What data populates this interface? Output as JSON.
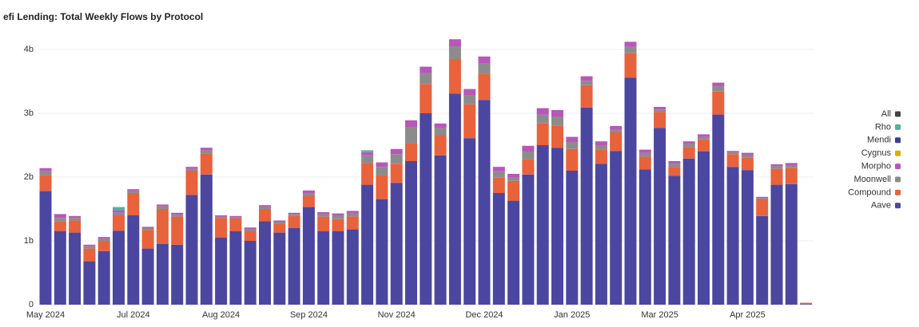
{
  "chart_data": {
    "type": "stacked_bar",
    "title": "efi Lending: Total Weekly Flows by Protocol",
    "categories": [
      "May 2024",
      null,
      null,
      null,
      null,
      null,
      "Jul 2024",
      null,
      null,
      null,
      null,
      null,
      "Aug 2024",
      null,
      null,
      null,
      null,
      null,
      "Sep 2024",
      null,
      null,
      null,
      null,
      null,
      "Nov 2024",
      null,
      null,
      null,
      null,
      null,
      "Dec 2024",
      null,
      null,
      null,
      null,
      null,
      "Jan 2025",
      null,
      null,
      null,
      null,
      null,
      "Mar 2025",
      null,
      null,
      null,
      null,
      null,
      "Apr 2025",
      null,
      null,
      null,
      null
    ],
    "ylim": [
      0,
      4.3
    ],
    "yticks": [
      0,
      {
        "value": 1,
        "label": "1b"
      },
      {
        "value": 2,
        "label": "2b"
      },
      {
        "value": 3,
        "label": "3b"
      },
      {
        "value": 4,
        "label": "4b"
      }
    ],
    "grid": true,
    "legend": "right",
    "legend_all": {
      "name": "All",
      "color": "#444444"
    },
    "series": [
      {
        "name": "Aave",
        "color": "#4b47a0",
        "values": [
          1.78,
          1.15,
          1.13,
          0.68,
          0.84,
          1.16,
          1.4,
          0.88,
          0.95,
          0.94,
          1.72,
          2.04,
          1.05,
          1.15,
          1.0,
          1.31,
          1.13,
          1.2,
          1.53,
          1.15,
          1.15,
          1.18,
          1.88,
          1.65,
          1.91,
          2.25,
          3.0,
          2.34,
          3.31,
          2.61,
          3.21,
          1.75,
          1.63,
          2.04,
          2.5,
          2.46,
          2.1,
          3.09,
          2.21,
          2.41,
          3.56,
          2.12,
          2.77,
          2.02,
          2.29,
          2.4,
          2.98,
          2.16,
          2.11,
          1.39,
          1.88,
          1.89,
          0.01
        ]
      },
      {
        "name": "Compound",
        "color": "#e8623c",
        "values": [
          0.25,
          0.16,
          0.19,
          0.2,
          0.16,
          0.24,
          0.35,
          0.29,
          0.55,
          0.44,
          0.38,
          0.33,
          0.31,
          0.2,
          0.15,
          0.19,
          0.14,
          0.19,
          0.17,
          0.23,
          0.19,
          0.2,
          0.34,
          0.38,
          0.3,
          0.28,
          0.46,
          0.31,
          0.54,
          0.53,
          0.41,
          0.24,
          0.31,
          0.24,
          0.34,
          0.35,
          0.34,
          0.35,
          0.22,
          0.29,
          0.38,
          0.2,
          0.25,
          0.14,
          0.18,
          0.19,
          0.36,
          0.2,
          0.2,
          0.26,
          0.25,
          0.25,
          0.02
        ]
      },
      {
        "name": "Moonwell",
        "color": "#8c8c8c",
        "values": [
          0.06,
          0.05,
          0.04,
          0.04,
          0.03,
          0.04,
          0.03,
          0.03,
          0.04,
          0.03,
          0.03,
          0.05,
          0.02,
          0.02,
          0.03,
          0.03,
          0.03,
          0.03,
          0.05,
          0.04,
          0.05,
          0.05,
          0.12,
          0.13,
          0.15,
          0.25,
          0.17,
          0.12,
          0.2,
          0.14,
          0.16,
          0.1,
          0.06,
          0.12,
          0.14,
          0.14,
          0.11,
          0.07,
          0.07,
          0.05,
          0.1,
          0.06,
          0.04,
          0.05,
          0.05,
          0.04,
          0.08,
          0.03,
          0.04,
          0.02,
          0.04,
          0.04,
          0
        ]
      },
      {
        "name": "Morpho",
        "color": "#b857b9",
        "values": [
          0.05,
          0.06,
          0.03,
          0.02,
          0.03,
          0.04,
          0.03,
          0.02,
          0.03,
          0.03,
          0.03,
          0.04,
          0.02,
          0.02,
          0.03,
          0.03,
          0.02,
          0.02,
          0.04,
          0.03,
          0.04,
          0.04,
          0.05,
          0.07,
          0.08,
          0.11,
          0.1,
          0.07,
          0.11,
          0.1,
          0.11,
          0.07,
          0.05,
          0.09,
          0.1,
          0.1,
          0.08,
          0.07,
          0.06,
          0.05,
          0.08,
          0.05,
          0.04,
          0.04,
          0.04,
          0.04,
          0.06,
          0.02,
          0.03,
          0.02,
          0.03,
          0.04,
          0
        ]
      },
      {
        "name": "Cygnus",
        "color": "#d4b106",
        "values": [
          0,
          0,
          0,
          0,
          0,
          0,
          0,
          0,
          0,
          0,
          0,
          0,
          0,
          0,
          0,
          0,
          0,
          0,
          0,
          0,
          0,
          0,
          0,
          0,
          0,
          0,
          0,
          0,
          0,
          0,
          0,
          0,
          0,
          0,
          0,
          0,
          0,
          0,
          0,
          0,
          0,
          0,
          0,
          0,
          0,
          0,
          0,
          0,
          0,
          0,
          0,
          0,
          0
        ]
      },
      {
        "name": "Mendi",
        "color": "#3a3f8f",
        "values": [
          0,
          0,
          0,
          0,
          0,
          0,
          0,
          0,
          0,
          0,
          0,
          0,
          0,
          0,
          0,
          0,
          0,
          0,
          0,
          0,
          0,
          0,
          0,
          0,
          0,
          0,
          0,
          0,
          0,
          0,
          0,
          0,
          0,
          0,
          0,
          0,
          0,
          0,
          0,
          0,
          0,
          0,
          0,
          0,
          0,
          0,
          0,
          0,
          0,
          0,
          0,
          0,
          0
        ]
      },
      {
        "name": "Rho",
        "color": "#4fb39a",
        "values": [
          0,
          0,
          0,
          0,
          0,
          0.05,
          0,
          0,
          0,
          0,
          0,
          0,
          0,
          0,
          0,
          0,
          0,
          0,
          0,
          0,
          0,
          0,
          0.03,
          0,
          0,
          0,
          0,
          0,
          0,
          0,
          0,
          0,
          0,
          0,
          0,
          0,
          0,
          0,
          0,
          0,
          0,
          0,
          0,
          0,
          0,
          0,
          0,
          0,
          0,
          0,
          0,
          0,
          0
        ]
      }
    ]
  }
}
